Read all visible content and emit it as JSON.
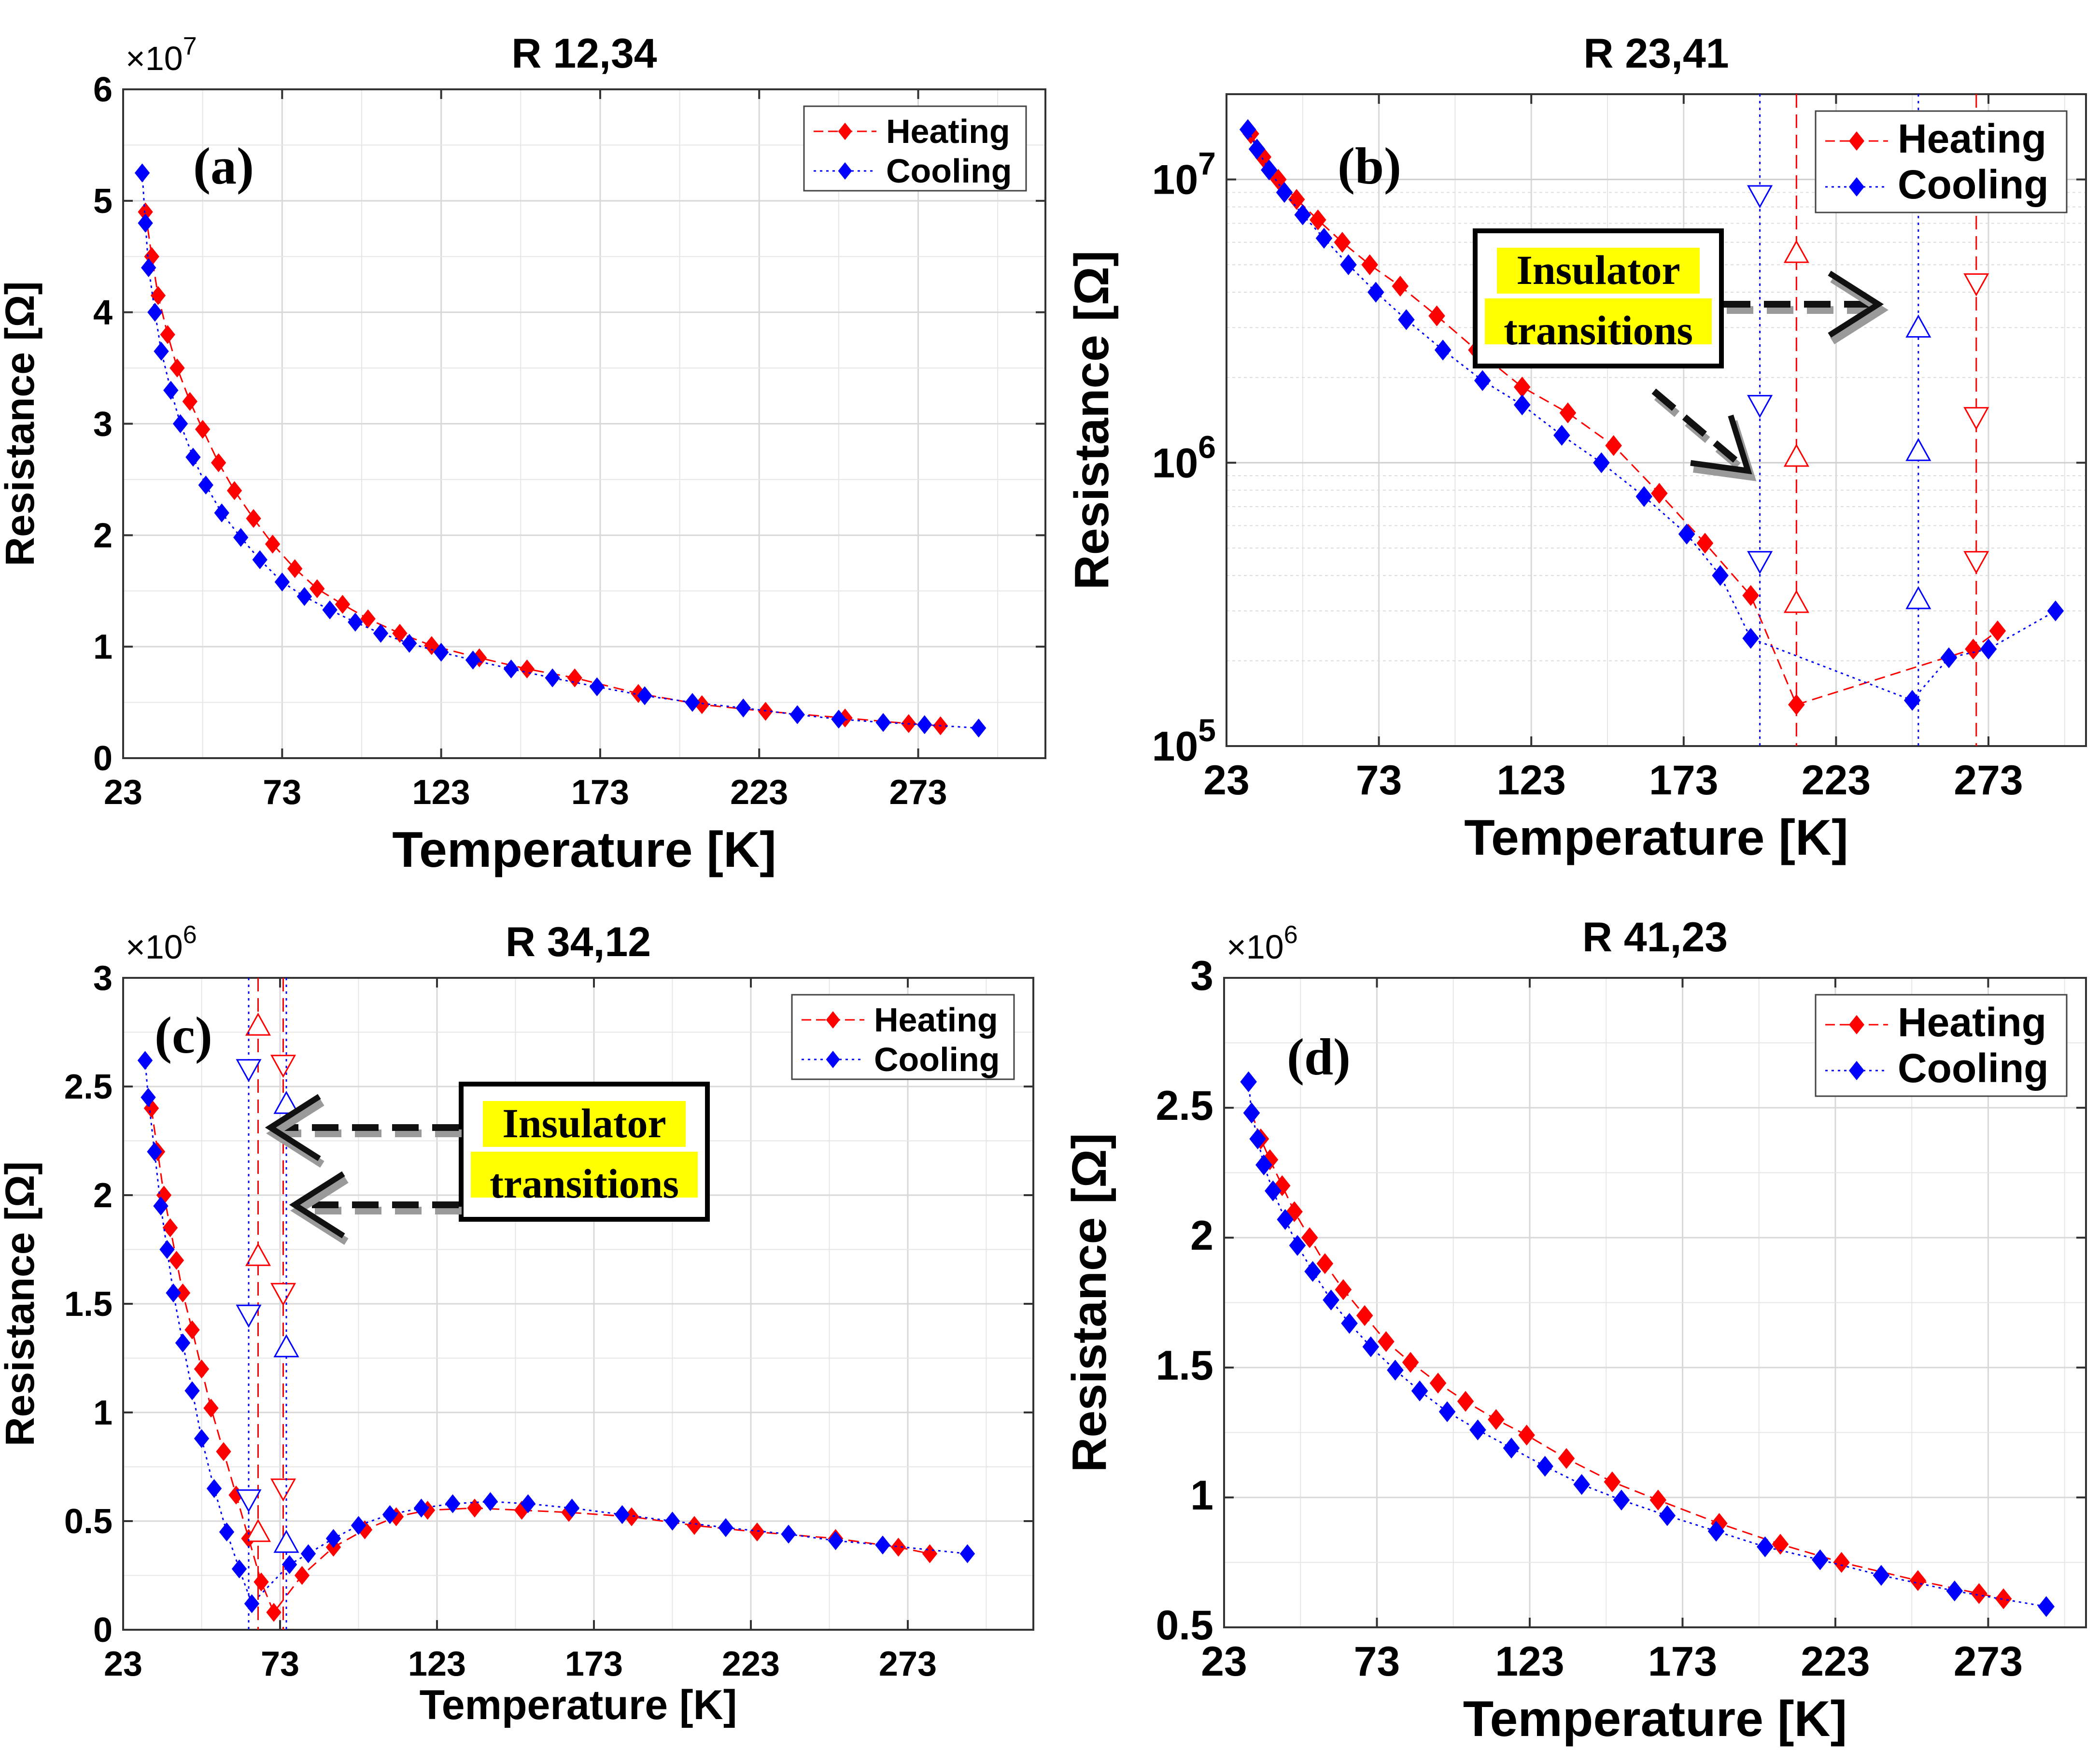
{
  "chart_data": [
    {
      "id": "a",
      "type": "scatter",
      "panel_label": "(a)",
      "title": "R 12,34",
      "xlabel": "Temperature [K]",
      "ylabel": "Resistance [Ω]",
      "yscale": "linear",
      "y_multiplier": "×10",
      "y_multiplier_exp": "7",
      "xlim": [
        23,
        313
      ],
      "ylim": [
        0,
        6
      ],
      "xticks": [
        23,
        73,
        123,
        173,
        223,
        273
      ],
      "yticks": [
        0,
        1,
        2,
        3,
        4,
        5,
        6
      ],
      "ytick_labels": [
        "0",
        "1",
        "2",
        "3",
        "4",
        "5",
        "6"
      ],
      "legend": {
        "position": "top-right",
        "entries": [
          "Heating",
          "Cooling"
        ]
      },
      "series": [
        {
          "name": "Heating",
          "color": "#ff0000",
          "marker": "diamond",
          "line": "dashed",
          "x": [
            30,
            32,
            34,
            37,
            40,
            44,
            48,
            53,
            58,
            64,
            70,
            77,
            84,
            92,
            100,
            110,
            120,
            135,
            150,
            165,
            185,
            205,
            225,
            250,
            270,
            280
          ],
          "y": [
            4.9,
            4.5,
            4.15,
            3.8,
            3.5,
            3.2,
            2.95,
            2.65,
            2.4,
            2.15,
            1.92,
            1.7,
            1.52,
            1.38,
            1.25,
            1.12,
            1.01,
            0.9,
            0.8,
            0.72,
            0.58,
            0.48,
            0.42,
            0.36,
            0.31,
            0.29
          ]
        },
        {
          "name": "Cooling",
          "color": "#0000ff",
          "marker": "diamond",
          "line": "dotted",
          "x": [
            29,
            30,
            31,
            33,
            35,
            38,
            41,
            45,
            49,
            54,
            60,
            66,
            73,
            80,
            88,
            96,
            104,
            113,
            123,
            133,
            145,
            158,
            172,
            187,
            202,
            218,
            235,
            248,
            262,
            275,
            292
          ],
          "y": [
            5.25,
            4.8,
            4.4,
            4.0,
            3.65,
            3.3,
            3.0,
            2.7,
            2.45,
            2.2,
            1.98,
            1.78,
            1.58,
            1.45,
            1.33,
            1.22,
            1.12,
            1.03,
            0.95,
            0.88,
            0.8,
            0.72,
            0.64,
            0.56,
            0.5,
            0.45,
            0.39,
            0.35,
            0.32,
            0.3,
            0.27
          ]
        }
      ]
    },
    {
      "id": "b",
      "type": "scatter",
      "panel_label": "(b)",
      "title": "R 23,41",
      "xlabel": "Temperature [K]",
      "ylabel": "Resistance [Ω]",
      "yscale": "log",
      "xlim": [
        23,
        305
      ],
      "ylim": [
        100000,
        20000000
      ],
      "xticks": [
        23,
        73,
        123,
        173,
        223,
        273
      ],
      "yticks": [
        100000,
        1000000,
        10000000
      ],
      "ytick_labels": [
        {
          "base": "10",
          "exp": "5"
        },
        {
          "base": "10",
          "exp": "6"
        },
        {
          "base": "10",
          "exp": "7"
        }
      ],
      "legend": {
        "position": "top-right",
        "entries": [
          "Heating",
          "Cooling"
        ]
      },
      "annotation": {
        "line1": "Insulator",
        "line2": "transitions"
      },
      "series": [
        {
          "name": "Heating",
          "color": "#ff0000",
          "marker": "diamond",
          "line": "dashed",
          "x": [
            31,
            35,
            40,
            46,
            53,
            61,
            70,
            80,
            92,
            105,
            120,
            135,
            150,
            165,
            180,
            195,
            210,
            268,
            276
          ],
          "y": [
            14500000,
            12000000,
            10000000,
            8500000,
            7200000,
            6000000,
            5000000,
            4200000,
            3300000,
            2500000,
            1850000,
            1500000,
            1150000,
            780000,
            520000,
            340000,
            140000,
            220000,
            255000
          ]
        },
        {
          "name": "Cooling",
          "color": "#0000ff",
          "marker": "diamond",
          "line": "dotted",
          "x": [
            30,
            33,
            37,
            42,
            48,
            55,
            63,
            72,
            82,
            94,
            107,
            120,
            133,
            146,
            160,
            174,
            185,
            195,
            248,
            260,
            273,
            295
          ],
          "y": [
            15000000,
            12800000,
            10800000,
            9000000,
            7500000,
            6200000,
            5000000,
            4000000,
            3200000,
            2500000,
            1950000,
            1600000,
            1250000,
            1000000,
            760000,
            560000,
            400000,
            240000,
            145000,
            205000,
            220000,
            300000
          ]
        },
        {
          "name": "Heating transition",
          "color": "#ff0000",
          "marker": "triangle-up-open",
          "line": "dashed",
          "x": [
            210,
            210,
            210
          ],
          "y": [
            5500000,
            1050000,
            320000
          ]
        },
        {
          "name": "Heating transition 2",
          "color": "#ff0000",
          "marker": "triangle-down-open",
          "line": "dashed",
          "x": [
            269,
            269,
            269
          ],
          "y": [
            4300000,
            1450000,
            450000
          ]
        },
        {
          "name": "Cooling transition",
          "color": "#0000ff",
          "marker": "triangle-down-open",
          "line": "dotted",
          "x": [
            198,
            198,
            198
          ],
          "y": [
            8800000,
            1600000,
            450000
          ]
        },
        {
          "name": "Cooling transition 2",
          "color": "#0000ff",
          "marker": "triangle-up-open",
          "line": "dotted",
          "x": [
            250,
            250,
            250
          ],
          "y": [
            3000000,
            1100000,
            330000
          ]
        }
      ]
    },
    {
      "id": "c",
      "type": "scatter",
      "panel_label": "(c)",
      "title": "R 34,12",
      "xlabel": "Temperature [K]",
      "ylabel": "Resistance [Ω]",
      "yscale": "linear",
      "y_multiplier": "×10",
      "y_multiplier_exp": "6",
      "xlim": [
        23,
        313
      ],
      "ylim": [
        0,
        3
      ],
      "xticks": [
        23,
        73,
        123,
        173,
        223,
        273
      ],
      "yticks": [
        0,
        0.5,
        1,
        1.5,
        2,
        2.5,
        3
      ],
      "ytick_labels": [
        "0",
        "0.5",
        "1",
        "1.5",
        "2",
        "2.5",
        "3"
      ],
      "legend": {
        "position": "top-right",
        "entries": [
          "Heating",
          "Cooling"
        ]
      },
      "annotation": {
        "line1": "Insulator",
        "line2": "transitions"
      },
      "series": [
        {
          "name": "Heating",
          "color": "#ff0000",
          "marker": "diamond",
          "line": "dashed",
          "x": [
            32,
            34,
            36,
            38,
            40,
            42,
            45,
            48,
            51,
            55,
            59,
            63,
            67,
            71,
            80,
            90,
            100,
            110,
            120,
            135,
            150,
            165,
            185,
            205,
            225,
            250,
            270,
            280
          ],
          "y": [
            2.4,
            2.2,
            2.0,
            1.85,
            1.7,
            1.55,
            1.38,
            1.2,
            1.02,
            0.82,
            0.62,
            0.42,
            0.22,
            0.08,
            0.25,
            0.38,
            0.46,
            0.52,
            0.55,
            0.56,
            0.55,
            0.54,
            0.52,
            0.48,
            0.45,
            0.42,
            0.38,
            0.35
          ]
        },
        {
          "name": "Cooling",
          "color": "#0000ff",
          "marker": "diamond",
          "line": "dotted",
          "x": [
            30,
            31,
            33,
            35,
            37,
            39,
            42,
            45,
            48,
            52,
            56,
            60,
            64,
            76,
            82,
            90,
            98,
            108,
            118,
            128,
            140,
            152,
            166,
            182,
            198,
            215,
            235,
            250,
            265,
            292
          ],
          "y": [
            2.62,
            2.45,
            2.2,
            1.95,
            1.75,
            1.55,
            1.32,
            1.1,
            0.88,
            0.65,
            0.45,
            0.28,
            0.12,
            0.3,
            0.35,
            0.42,
            0.48,
            0.53,
            0.56,
            0.58,
            0.59,
            0.58,
            0.56,
            0.53,
            0.5,
            0.47,
            0.44,
            0.41,
            0.39,
            0.35
          ]
        },
        {
          "name": "Heating transition",
          "color": "#ff0000",
          "marker": "triangle-up-open",
          "line": "dashed",
          "x": [
            66,
            66,
            66
          ],
          "y": [
            2.78,
            1.72,
            0.45
          ]
        },
        {
          "name": "Heating transition 2",
          "color": "#ff0000",
          "marker": "triangle-down-open",
          "line": "dashed",
          "x": [
            74,
            74,
            74
          ],
          "y": [
            2.6,
            1.55,
            0.65
          ]
        },
        {
          "name": "Cooling transition",
          "color": "#0000ff",
          "marker": "triangle-down-open",
          "line": "dotted",
          "x": [
            63,
            63,
            63
          ],
          "y": [
            2.58,
            1.45,
            0.6
          ]
        },
        {
          "name": "Cooling transition 2",
          "color": "#0000ff",
          "marker": "triangle-up-open",
          "line": "dotted",
          "x": [
            75,
            75,
            75
          ],
          "y": [
            2.42,
            1.3,
            0.4
          ]
        }
      ]
    },
    {
      "id": "d",
      "type": "scatter",
      "panel_label": "(d)",
      "title": "R 41,23",
      "xlabel": "Temperature [K]",
      "ylabel": "Resistance [Ω]",
      "yscale": "linear",
      "y_multiplier": "×10",
      "y_multiplier_exp": "6",
      "xlim": [
        23,
        305
      ],
      "ylim": [
        0.5,
        3
      ],
      "xticks": [
        23,
        73,
        123,
        173,
        223,
        273
      ],
      "yticks": [
        0.5,
        1,
        1.5,
        2,
        2.5,
        3
      ],
      "ytick_labels": [
        "0.5",
        "1",
        "1.5",
        "2",
        "2.5",
        "3"
      ],
      "legend": {
        "position": "top-right",
        "entries": [
          "Heating",
          "Cooling"
        ]
      },
      "series": [
        {
          "name": "Heating",
          "color": "#ff0000",
          "marker": "diamond",
          "line": "dashed",
          "x": [
            32,
            35,
            38,
            42,
            46,
            51,
            56,
            62,
            69,
            76,
            84,
            93,
            102,
            112,
            122,
            135,
            150,
            165,
            185,
            205,
            225,
            250,
            270,
            278
          ],
          "y": [
            2.48,
            2.38,
            2.3,
            2.2,
            2.1,
            2.0,
            1.9,
            1.8,
            1.7,
            1.6,
            1.52,
            1.44,
            1.37,
            1.3,
            1.24,
            1.15,
            1.06,
            0.99,
            0.9,
            0.82,
            0.75,
            0.68,
            0.63,
            0.61
          ]
        },
        {
          "name": "Cooling",
          "color": "#0000ff",
          "marker": "diamond",
          "line": "dotted",
          "x": [
            31,
            32,
            34,
            36,
            39,
            43,
            47,
            52,
            58,
            64,
            71,
            79,
            87,
            96,
            106,
            117,
            128,
            140,
            153,
            168,
            184,
            200,
            218,
            238,
            262,
            292
          ],
          "y": [
            2.6,
            2.48,
            2.38,
            2.28,
            2.18,
            2.07,
            1.97,
            1.87,
            1.76,
            1.67,
            1.58,
            1.49,
            1.41,
            1.33,
            1.26,
            1.19,
            1.12,
            1.05,
            0.99,
            0.93,
            0.87,
            0.81,
            0.76,
            0.7,
            0.64,
            0.58
          ]
        }
      ]
    }
  ]
}
